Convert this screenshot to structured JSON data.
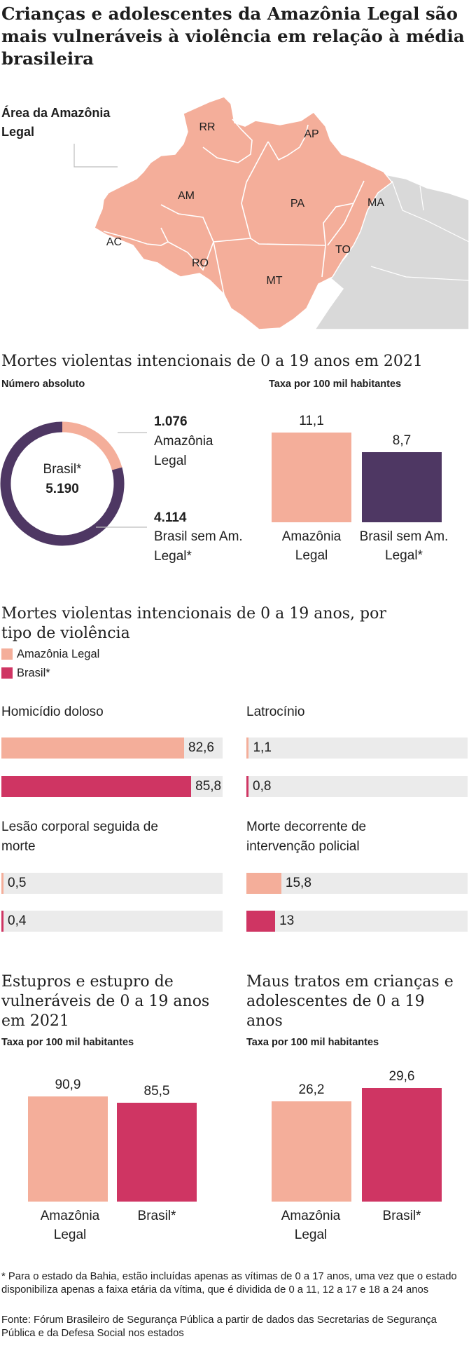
{
  "title": "Crianças e adolescentes da Amazônia Legal são mais vulneráveis à violência em relação à média brasileira",
  "colors": {
    "amazonia": "#f4ae9a",
    "brasil_sem_am": "#4e3763",
    "brasil": "#cf3563",
    "track": "#ebebeb",
    "grey_map": "#d9d9d9"
  },
  "map": {
    "label": "Área da Amazônia Legal",
    "states": [
      "RR",
      "AP",
      "AM",
      "PA",
      "MA",
      "AC",
      "RO",
      "TO",
      "MT"
    ]
  },
  "mortes_2021": {
    "title": "Mortes violentas intencionais de 0 a 19 anos em 2021",
    "absolute_label": "Número absoluto",
    "rate_label": "Taxa por 100 mil habitantes",
    "donut_center_label": "Brasil*",
    "donut_center_value": "5.190",
    "amazonia_value_text": "1.076",
    "amazonia_label": "Amazônia Legal",
    "brasil_sem_value_text": "4.114",
    "brasil_sem_label": "Brasil sem Am. Legal*",
    "rate_amazonia_text": "11,1",
    "rate_brasil_sem_text": "8,7",
    "rate_cat_amazonia": "Amazônia Legal",
    "rate_cat_brasil_sem": "Brasil sem Am. Legal*"
  },
  "por_tipo": {
    "title": "Mortes violentas intencionais de 0 a 19 anos, por tipo de violência",
    "legend_amazonia": "Amazônia Legal",
    "legend_brasil": "Brasil*",
    "panels": [
      {
        "label": "Homicídio doloso",
        "amazonia_text": "82,6",
        "brasil_text": "85,8"
      },
      {
        "label": "Latrocínio",
        "amazonia_text": "1,1",
        "brasil_text": "0,8"
      },
      {
        "label": "Lesão corporal seguida de morte",
        "amazonia_text": "0,5",
        "brasil_text": "0,4"
      },
      {
        "label": "Morte decorrente de intervenção policial",
        "amazonia_text": "15,8",
        "brasil_text": "13"
      }
    ]
  },
  "estupros": {
    "title": "Estupros e estupro de vulneráveis de 0 a 19 anos em 2021",
    "rate_label": "Taxa por 100 mil habitantes",
    "amazonia_text": "90,9",
    "brasil_text": "85,5",
    "cat_amazonia": "Amazônia Legal",
    "cat_brasil": "Brasil*"
  },
  "maus_tratos": {
    "title": "Maus tratos em crianças e adolescentes de 0 a 19 anos",
    "rate_label": "Taxa por 100 mil habitantes",
    "amazonia_text": "26,2",
    "brasil_text": "29,6",
    "cat_amazonia": "Amazônia Legal",
    "cat_brasil": "Brasil*"
  },
  "footnote": "* Para o estado da Bahia, estão incluídas apenas as vítimas de 0 a 17 anos, uma vez que o estado disponibiliza apenas a faixa etária da vítima, que é dividida de 0 a 11, 12 a 17 e 18 a 24 anos",
  "source": "Fonte: Fórum Brasileiro de Segurança Pública a partir de dados das Secretarias de Segurança Pública e da Defesa Social nos estados",
  "chart_data": [
    {
      "type": "pie",
      "title": "Mortes violentas intencionais de 0 a 19 anos em 2021",
      "subtitle": "Número absoluto",
      "categories": [
        "Amazônia Legal",
        "Brasil sem Am. Legal*"
      ],
      "values": [
        1076,
        4114
      ],
      "total": 5190
    },
    {
      "type": "bar",
      "subtitle": "Taxa por 100 mil habitantes",
      "categories": [
        "Amazônia Legal",
        "Brasil sem Am. Legal*"
      ],
      "values": [
        11.1,
        8.7
      ]
    },
    {
      "type": "bar",
      "title": "Mortes violentas intencionais de 0 a 19 anos, por tipo de violência",
      "categories": [
        "Homicídio doloso",
        "Latrocínio",
        "Lesão corporal seguida de morte",
        "Morte decorrente de intervenção policial"
      ],
      "series": [
        {
          "name": "Amazônia Legal",
          "values": [
            82.6,
            1.1,
            0.5,
            15.8
          ]
        },
        {
          "name": "Brasil*",
          "values": [
            85.8,
            0.8,
            0.4,
            13
          ]
        }
      ],
      "xlim": [
        0,
        100
      ],
      "legend": "top-left"
    },
    {
      "type": "bar",
      "title": "Estupros e estupro de vulneráveis de 0 a 19 anos em 2021",
      "subtitle": "Taxa por 100 mil habitantes",
      "categories": [
        "Amazônia Legal",
        "Brasil*"
      ],
      "values": [
        90.9,
        85.5
      ]
    },
    {
      "type": "bar",
      "title": "Maus tratos em crianças e adolescentes de 0 a 19 anos",
      "subtitle": "Taxa por 100 mil habitantes",
      "categories": [
        "Amazônia Legal",
        "Brasil*"
      ],
      "values": [
        26.2,
        29.6
      ]
    }
  ]
}
